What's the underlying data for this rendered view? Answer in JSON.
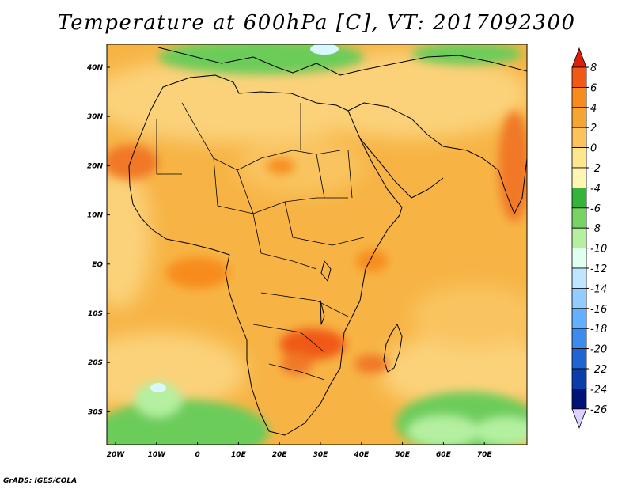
{
  "title": "Temperature at 600hPa [C], VT: 2017092300",
  "credit": "GrADS: IGES/COLA",
  "map": {
    "lat_ticks": [
      "40N",
      "30N",
      "20N",
      "10N",
      "EQ",
      "10S",
      "20S",
      "30S"
    ],
    "lon_ticks": [
      "20W",
      "10W",
      "0",
      "10E",
      "20E",
      "30E",
      "40E",
      "50E",
      "60E",
      "70E"
    ],
    "colorbar": {
      "labels": [
        "8",
        "6",
        "4",
        "2",
        "0",
        "-2",
        "-4",
        "-6",
        "-8",
        "-10",
        "-12",
        "-14",
        "-16",
        "-18",
        "-20",
        "-22",
        "-24",
        "-26"
      ],
      "colors": [
        "#dc1e0a",
        "#f05a14",
        "#f78c1e",
        "#f5a532",
        "#fbc35a",
        "#fde68c",
        "#fff5b4",
        "#35b43c",
        "#78d264",
        "#b4f0a0",
        "#e1fff0",
        "#bee6ff",
        "#91cdff",
        "#64afff",
        "#3c8cf0",
        "#1e64d2",
        "#0a3caa",
        "#001478",
        "#dcd2ff"
      ]
    }
  }
}
